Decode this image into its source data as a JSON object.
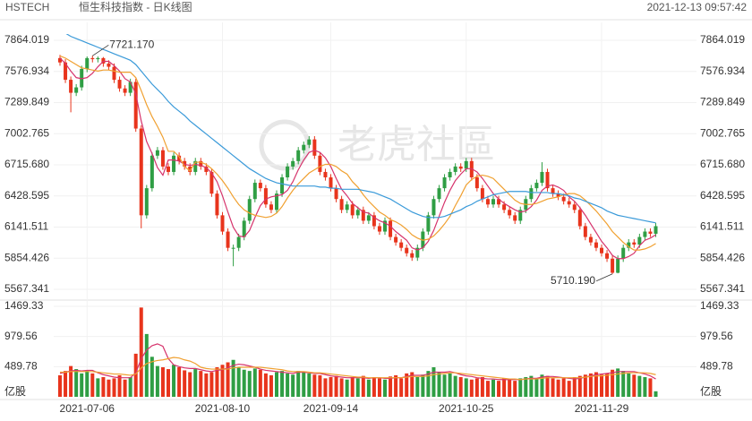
{
  "chart_data": {
    "type": "candlestick",
    "symbol": "HSTECH",
    "title": "恒生科技指数 - 日K线图",
    "timestamp": "2021-12-13 09:57:42",
    "watermark": "老虎社區",
    "up_color": "#2f9e44",
    "down_color": "#e8341c",
    "categories": [
      null,
      null,
      null,
      null,
      null,
      "2021-07-06",
      null,
      null,
      null,
      null,
      null,
      null,
      null,
      null,
      null,
      null,
      null,
      null,
      null,
      null,
      null,
      null,
      null,
      null,
      null,
      null,
      null,
      null,
      null,
      null,
      "2021-08-10",
      null,
      null,
      null,
      null,
      null,
      null,
      null,
      null,
      null,
      null,
      null,
      null,
      null,
      null,
      null,
      null,
      null,
      null,
      null,
      "2021-09-14",
      null,
      null,
      null,
      null,
      null,
      null,
      null,
      null,
      null,
      null,
      null,
      null,
      null,
      null,
      null,
      null,
      null,
      null,
      null,
      null,
      null,
      null,
      null,
      null,
      "2021-10-25",
      null,
      null,
      null,
      null,
      null,
      null,
      null,
      null,
      null,
      null,
      null,
      null,
      null,
      null,
      null,
      null,
      null,
      null,
      null,
      null,
      null,
      null,
      null,
      null,
      "2021-11-29",
      null,
      null,
      null,
      null,
      null,
      null,
      null,
      null,
      null,
      null
    ],
    "open": [
      7700,
      7660,
      7500,
      7380,
      7430,
      7600,
      7700,
      7690,
      7700,
      7650,
      7620,
      7500,
      7420,
      7380,
      7480,
      7050,
      6250,
      6500,
      6800,
      6850,
      6700,
      6650,
      6800,
      6750,
      6700,
      6650,
      6750,
      6700,
      6650,
      6450,
      6250,
      6100,
      5950,
      5950,
      6050,
      6200,
      6400,
      6550,
      6500,
      6350,
      6300,
      6450,
      6600,
      6700,
      6750,
      6850,
      6900,
      6950,
      6800,
      6650,
      6600,
      6500,
      6400,
      6300,
      6350,
      6250,
      6300,
      6200,
      6250,
      6150,
      6100,
      6200,
      6050,
      6000,
      5950,
      5900,
      5860,
      5950,
      6100,
      6250,
      6400,
      6500,
      6600,
      6650,
      6700,
      6680,
      6750,
      6600,
      6500,
      6400,
      6350,
      6400,
      6350,
      6300,
      6250,
      6200,
      6300,
      6400,
      6500,
      6550,
      6650,
      6500,
      6450,
      6420,
      6380,
      6350,
      6300,
      6150,
      6050,
      6000,
      5950,
      5900,
      5850,
      5720,
      5850,
      5950,
      6000,
      5980,
      6050,
      6100,
      6080
    ],
    "high": [
      7730,
      7690,
      7530,
      7460,
      7630,
      7715,
      7721.17,
      7715,
      7710,
      7680,
      7650,
      7530,
      7450,
      7510,
      7510,
      7080,
      6530,
      6830,
      6880,
      6880,
      6730,
      6830,
      6830,
      6780,
      6730,
      6780,
      6780,
      6730,
      6680,
      6480,
      6280,
      6130,
      5980,
      6080,
      6230,
      6430,
      6580,
      6580,
      6530,
      6380,
      6480,
      6630,
      6730,
      6780,
      6880,
      6930,
      6980,
      6980,
      6830,
      6680,
      6630,
      6530,
      6430,
      6380,
      6380,
      6330,
      6330,
      6280,
      6280,
      6180,
      6230,
      6230,
      6080,
      6030,
      5980,
      5930,
      5980,
      6130,
      6280,
      6430,
      6530,
      6630,
      6680,
      6730,
      6730,
      6780,
      6780,
      6630,
      6530,
      6430,
      6430,
      6430,
      6380,
      6330,
      6280,
      6330,
      6430,
      6530,
      6580,
      6740,
      6680,
      6530,
      6480,
      6450,
      6410,
      6380,
      6330,
      6180,
      6080,
      6030,
      5980,
      5930,
      5880,
      5880,
      5980,
      6030,
      6030,
      6080,
      6130,
      6130,
      6180
    ],
    "low": [
      7630,
      7470,
      7200,
      7350,
      7400,
      7570,
      7660,
      7660,
      7620,
      7590,
      7470,
      7390,
      7350,
      7350,
      7020,
      6130,
      6220,
      6470,
      6770,
      6670,
      6620,
      6620,
      6720,
      6670,
      6620,
      6620,
      6670,
      6620,
      6420,
      6220,
      6070,
      5920,
      5780,
      5920,
      6020,
      6170,
      6370,
      6470,
      6320,
      6270,
      6270,
      6420,
      6570,
      6670,
      6720,
      6820,
      6870,
      6770,
      6620,
      6570,
      6470,
      6370,
      6270,
      6270,
      6220,
      6220,
      6170,
      6170,
      6120,
      6070,
      6070,
      6020,
      5970,
      5920,
      5870,
      5830,
      5830,
      5920,
      6070,
      6220,
      6370,
      6470,
      6570,
      6620,
      6650,
      6650,
      6570,
      6470,
      6370,
      6320,
      6320,
      6320,
      6270,
      6220,
      6170,
      6170,
      6270,
      6370,
      6470,
      6520,
      6470,
      6420,
      6390,
      6350,
      6320,
      6270,
      6120,
      6020,
      5970,
      5920,
      5870,
      5820,
      5710.19,
      5715,
      5820,
      5920,
      5950,
      5950,
      6020,
      6050,
      6050
    ],
    "close": [
      7660,
      7500,
      7380,
      7430,
      7600,
      7700,
      7690,
      7700,
      7650,
      7620,
      7500,
      7420,
      7380,
      7480,
      7050,
      6250,
      6500,
      6800,
      6850,
      6700,
      6650,
      6800,
      6750,
      6700,
      6650,
      6750,
      6700,
      6650,
      6450,
      6250,
      6100,
      5950,
      5950,
      6050,
      6200,
      6400,
      6550,
      6500,
      6350,
      6300,
      6450,
      6600,
      6700,
      6750,
      6850,
      6900,
      6950,
      6800,
      6650,
      6600,
      6500,
      6400,
      6300,
      6350,
      6250,
      6300,
      6200,
      6250,
      6150,
      6100,
      6200,
      6050,
      6000,
      5950,
      5900,
      5860,
      5950,
      6100,
      6250,
      6400,
      6500,
      6600,
      6650,
      6700,
      6680,
      6750,
      6600,
      6500,
      6400,
      6350,
      6400,
      6350,
      6300,
      6250,
      6200,
      6300,
      6400,
      6500,
      6550,
      6650,
      6500,
      6450,
      6420,
      6380,
      6350,
      6300,
      6150,
      6050,
      6000,
      5950,
      5900,
      5850,
      5720,
      5850,
      5950,
      6000,
      5980,
      6050,
      6100,
      6080,
      6150
    ],
    "annotations": [
      {
        "label": "7721.170",
        "value": 7721.17
      },
      {
        "label": "5710.190",
        "value": 5710.19
      }
    ],
    "ylim": [
      5567.341,
      7864.019
    ],
    "yticks": [
      7864.019,
      7576.934,
      7289.849,
      7002.765,
      {
        "value": 6715.68,
        "label": "6715.680"
      },
      6428.595,
      6141.511,
      5854.426,
      5567.341
    ],
    "series": [
      {
        "color": "#d6336c",
        "values": [
          7700,
          7650,
          7580,
          7520,
          7510,
          7520,
          7560,
          7620,
          7670,
          7670,
          7630,
          7580,
          7510,
          7480,
          7370,
          7120,
          6930,
          6820,
          6690,
          6620,
          6760,
          6760,
          6750,
          6720,
          6710,
          6720,
          6710,
          6690,
          6640,
          6560,
          6430,
          6280,
          6140,
          6060,
          6050,
          6110,
          6230,
          6340,
          6400,
          6420,
          6430,
          6440,
          6480,
          6560,
          6670,
          6760,
          6830,
          6850,
          6830,
          6780,
          6700,
          6590,
          6490,
          6430,
          6360,
          6320,
          6280,
          6270,
          6230,
          6200,
          6180,
          6150,
          6100,
          6060,
          6020,
          5950,
          5930,
          5950,
          6010,
          6110,
          6240,
          6370,
          6480,
          6570,
          6630,
          6680,
          6680,
          6650,
          6590,
          6520,
          6450,
          6400,
          6360,
          6330,
          6300,
          6280,
          6290,
          6330,
          6390,
          6480,
          6520,
          6530,
          6510,
          6480,
          6420,
          6380,
          6320,
          6250,
          6170,
          6090,
          6010,
          5950,
          5880,
          5850,
          5850,
          5870,
          5900,
          5970,
          6020,
          6040,
          6070
        ]
      },
      {
        "color": "#f0a030",
        "values": [
          7720,
          7700,
          7670,
          7640,
          7610,
          7600,
          7590,
          7580,
          7590,
          7590,
          7580,
          7570,
          7570,
          7570,
          7520,
          7400,
          7270,
          7160,
          7070,
          6970,
          6840,
          6840,
          6790,
          6700,
          6660,
          6740,
          6740,
          6720,
          6680,
          6630,
          6570,
          6500,
          6420,
          6350,
          6300,
          6270,
          6250,
          6240,
          6230,
          6240,
          6270,
          6330,
          6410,
          6480,
          6540,
          6590,
          6640,
          6670,
          6700,
          6720,
          6720,
          6700,
          6660,
          6630,
          6560,
          6510,
          6440,
          6380,
          6330,
          6280,
          6250,
          6210,
          6190,
          6160,
          6120,
          6070,
          6040,
          6020,
          6030,
          6060,
          6110,
          6170,
          6240,
          6340,
          6430,
          6530,
          6580,
          6610,
          6620,
          6610,
          6590,
          6540,
          6490,
          6440,
          6390,
          6360,
          6350,
          6350,
          6360,
          6380,
          6400,
          6410,
          6420,
          6440,
          6450,
          6450,
          6430,
          6390,
          6340,
          6290,
          6230,
          6170,
          6100,
          6050,
          6000,
          5960,
          5930,
          5930,
          5940,
          5960,
          5990
        ]
      },
      {
        "color": "#3a9ad9",
        "values": [
          7950,
          7930,
          7900,
          7880,
          7860,
          7840,
          7820,
          7800,
          7780,
          7760,
          7740,
          7720,
          7700,
          7680,
          7640,
          7580,
          7520,
          7460,
          7410,
          7360,
          7300,
          7250,
          7210,
          7170,
          7120,
          7080,
          7040,
          7000,
          6960,
          6920,
          6880,
          6840,
          6800,
          6760,
          6720,
          6680,
          6650,
          6620,
          6590,
          6570,
          6550,
          6540,
          6530,
          6520,
          6520,
          6520,
          6520,
          6520,
          6510,
          6510,
          6500,
          6500,
          6490,
          6490,
          6490,
          6490,
          6480,
          6470,
          6460,
          6440,
          6420,
          6400,
          6370,
          6340,
          6310,
          6280,
          6260,
          6240,
          6230,
          6230,
          6230,
          6240,
          6260,
          6280,
          6300,
          6330,
          6350,
          6380,
          6400,
          6420,
          6440,
          6450,
          6460,
          6470,
          6470,
          6470,
          6470,
          6460,
          6460,
          6460,
          6460,
          6450,
          6450,
          6440,
          6430,
          6410,
          6400,
          6380,
          6360,
          6340,
          6320,
          6290,
          6270,
          6250,
          6240,
          6230,
          6220,
          6210,
          6200,
          6190,
          6180
        ]
      }
    ],
    "volume": {
      "unit": "亿股",
      "ylim": [
        0,
        1469.33
      ],
      "yticks": [
        1469.33,
        979.56,
        489.78
      ],
      "values": [
        350,
        420,
        500,
        450,
        380,
        420,
        380,
        300,
        320,
        280,
        300,
        350,
        280,
        320,
        700,
        1450,
        1020,
        650,
        500,
        480,
        450,
        520,
        480,
        430,
        400,
        450,
        420,
        380,
        400,
        480,
        520,
        560,
        600,
        480,
        440,
        420,
        460,
        440,
        380,
        350,
        400,
        420,
        380,
        360,
        420,
        400,
        380,
        360,
        350,
        300,
        320,
        340,
        300,
        280,
        320,
        300,
        340,
        280,
        320,
        300,
        280,
        330,
        350,
        300,
        380,
        400,
        320,
        360,
        420,
        480,
        400,
        360,
        380,
        340,
        320,
        300,
        280,
        300,
        320,
        260,
        280,
        260,
        300,
        280,
        260,
        300,
        320,
        340,
        300,
        360,
        340,
        300,
        280,
        300,
        260,
        320,
        340,
        360,
        380,
        400,
        360,
        380,
        440,
        460,
        420,
        380,
        360,
        340,
        320,
        300,
        90
      ],
      "series": [
        {
          "color": "#d6336c",
          "values": [
            380,
            400,
            420,
            430,
            420,
            430,
            430,
            390,
            360,
            340,
            320,
            310,
            310,
            310,
            390,
            620,
            760,
            830,
            860,
            820,
            620,
            520,
            490,
            470,
            460,
            460,
            440,
            420,
            410,
            430,
            440,
            470,
            510,
            530,
            520,
            500,
            480,
            450,
            430,
            420,
            410,
            400,
            390,
            380,
            400,
            400,
            390,
            380,
            380,
            360,
            340,
            330,
            320,
            310,
            310,
            310,
            310,
            300,
            310,
            310,
            300,
            300,
            310,
            310,
            330,
            350,
            350,
            350,
            370,
            400,
            400,
            400,
            410,
            390,
            360,
            340,
            330,
            310,
            300,
            290,
            290,
            280,
            280,
            280,
            280,
            280,
            290,
            300,
            300,
            320,
            330,
            330,
            320,
            310,
            300,
            290,
            300,
            320,
            340,
            360,
            370,
            380,
            390,
            410,
            410,
            410,
            410,
            390,
            370,
            340,
            290
          ]
        },
        {
          "color": "#f0a030",
          "values": [
            400,
            400,
            410,
            410,
            410,
            410,
            410,
            400,
            390,
            380,
            370,
            370,
            360,
            350,
            370,
            470,
            540,
            570,
            590,
            600,
            620,
            640,
            630,
            600,
            580,
            540,
            480,
            460,
            450,
            450,
            450,
            450,
            470,
            480,
            480,
            480,
            480,
            480,
            470,
            460,
            450,
            440,
            420,
            410,
            410,
            410,
            400,
            390,
            390,
            380,
            370,
            360,
            350,
            340,
            330,
            320,
            320,
            310,
            310,
            310,
            310,
            310,
            310,
            310,
            320,
            330,
            330,
            330,
            340,
            360,
            370,
            380,
            390,
            390,
            380,
            370,
            360,
            350,
            340,
            330,
            320,
            310,
            300,
            290,
            290,
            280,
            290,
            290,
            290,
            300,
            310,
            310,
            310,
            310,
            310,
            310,
            310,
            320,
            330,
            340,
            340,
            350,
            360,
            370,
            380,
            390,
            390,
            390,
            390,
            380,
            360
          ]
        }
      ]
    }
  }
}
